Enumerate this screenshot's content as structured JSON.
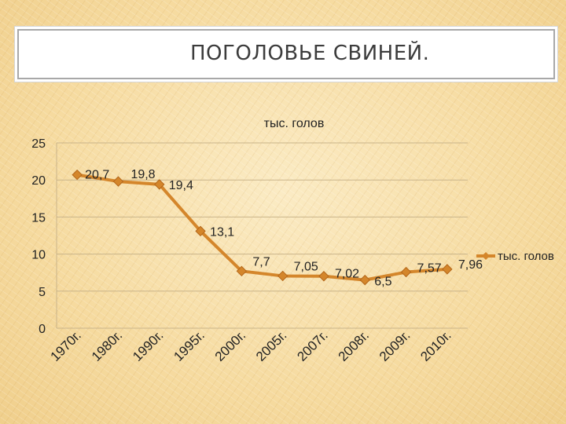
{
  "slide": {
    "title": "ПОГОЛОВЬЕ СВИНЕЙ."
  },
  "colors": {
    "series": "#d4862b",
    "series_dark": "#b4671a",
    "grid": "#c9b48a"
  },
  "chart_data": {
    "type": "line",
    "title": "тыс. голов",
    "categories": [
      "1970г.",
      "1980г.",
      "1990г.",
      "1995г.",
      "2000г.",
      "2005г.",
      "2007г.",
      "2008г.",
      "2009г.",
      "2010г."
    ],
    "series": [
      {
        "name": "тыс. голов",
        "values": [
          20.7,
          19.8,
          19.4,
          13.1,
          7.7,
          7.05,
          7.02,
          6.5,
          7.57,
          7.96
        ],
        "labels": [
          "20,7",
          "19,8",
          "19,4",
          "13,1",
          "7,7",
          "7,05",
          "7,02",
          "6,5",
          "7,57",
          "7,96"
        ]
      }
    ],
    "ylim": [
      0,
      25
    ],
    "yticks": [
      "0",
      "5",
      "10",
      "15",
      "20",
      "25"
    ],
    "grid": true,
    "legend": "right"
  }
}
